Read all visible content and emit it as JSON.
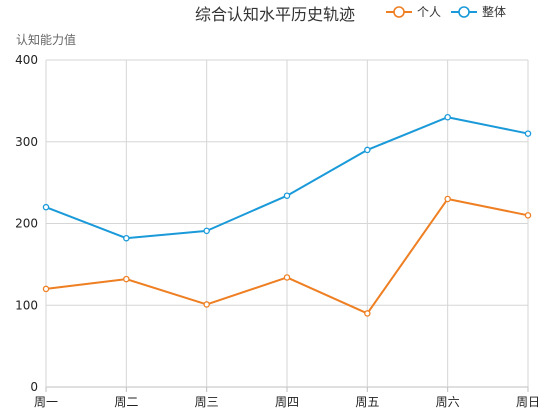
{
  "chart_data": {
    "type": "line",
    "title": "综合认知水平历史轨迹",
    "ylabel": "认知能力值",
    "xlabel": "",
    "categories": [
      "周一",
      "周二",
      "周三",
      "周四",
      "周五",
      "周六",
      "周日"
    ],
    "ylim": [
      0,
      400
    ],
    "yticks": [
      0,
      100,
      200,
      300,
      400
    ],
    "grid": true,
    "legend_position": "top-right",
    "series": [
      {
        "name": "个人",
        "color": "#ee7f22",
        "values": [
          120,
          132,
          101,
          134,
          90,
          230,
          210
        ]
      },
      {
        "name": "整体",
        "color": "#1a9ad9",
        "values": [
          220,
          182,
          191,
          234,
          290,
          330,
          310
        ]
      }
    ]
  }
}
